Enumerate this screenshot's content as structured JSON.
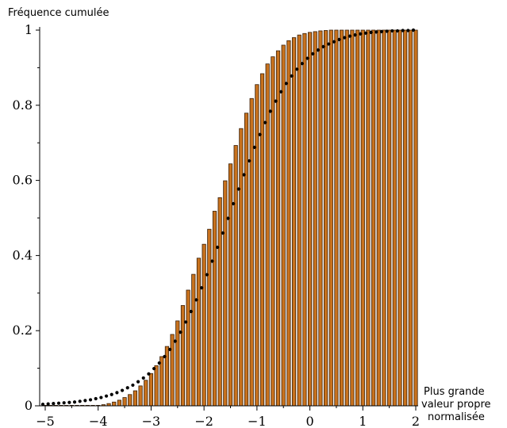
{
  "chart_data": {
    "type": "bar",
    "title": "",
    "ylabel": "Fréquence cumulée",
    "xlabel_lines": [
      "Plus grande",
      "valeur propre",
      "normalisée"
    ],
    "xlim": [
      -5,
      2
    ],
    "ylim": [
      0,
      1
    ],
    "x_ticks": [
      -5,
      -4,
      -3,
      -2,
      -1,
      0,
      1,
      2
    ],
    "x_tick_labels": [
      "−5",
      "−4",
      "−3",
      "−2",
      "−1",
      "0",
      "1",
      "2"
    ],
    "y_ticks": [
      0,
      0.2,
      0.4,
      0.6,
      0.8,
      1
    ],
    "y_tick_labels": [
      "0",
      "0.2",
      "0.4",
      "0.6",
      "0.8",
      "1"
    ],
    "grid": false,
    "colors": {
      "bar_fill": "#c8721e",
      "bar_stroke": "#3a1e05",
      "point": "#000000",
      "axis": "#000000"
    },
    "series": [
      {
        "type": "bar",
        "x": [
          -5.0,
          -4.9,
          -4.8,
          -4.7,
          -4.6,
          -4.5,
          -4.4,
          -4.3,
          -4.2,
          -4.1,
          -4.0,
          -3.9,
          -3.8,
          -3.7,
          -3.6,
          -3.5,
          -3.4,
          -3.3,
          -3.2,
          -3.1,
          -3.0,
          -2.9,
          -2.8,
          -2.7,
          -2.6,
          -2.5,
          -2.4,
          -2.3,
          -2.2,
          -2.1,
          -2.0,
          -1.9,
          -1.8,
          -1.7,
          -1.6,
          -1.5,
          -1.4,
          -1.3,
          -1.2,
          -1.1,
          -1.0,
          -0.9,
          -0.8,
          -0.7,
          -0.6,
          -0.5,
          -0.4,
          -0.3,
          -0.2,
          -0.1,
          0.0,
          0.1,
          0.2,
          0.3,
          0.4,
          0.5,
          0.6,
          0.7,
          0.8,
          0.9,
          1.0,
          1.1,
          1.2,
          1.3,
          1.4,
          1.5,
          1.6,
          1.7,
          1.8,
          1.9,
          2.0
        ],
        "values": [
          0.0,
          0.0,
          0.0,
          0.0,
          0.0,
          0.0,
          0.0,
          0.0,
          0.0,
          0.0,
          0.001,
          0.003,
          0.006,
          0.01,
          0.015,
          0.022,
          0.03,
          0.04,
          0.053,
          0.068,
          0.086,
          0.107,
          0.131,
          0.158,
          0.19,
          0.226,
          0.267,
          0.308,
          0.35,
          0.393,
          0.43,
          0.47,
          0.518,
          0.554,
          0.599,
          0.644,
          0.693,
          0.738,
          0.779,
          0.818,
          0.855,
          0.884,
          0.91,
          0.929,
          0.945,
          0.96,
          0.972,
          0.98,
          0.987,
          0.991,
          0.994,
          0.996,
          0.998,
          0.999,
          1.0,
          1.0,
          1.0,
          1.0,
          1.0,
          1.0,
          1.0,
          1.0,
          1.0,
          1.0,
          1.0,
          1.0,
          1.0,
          1.0,
          1.0,
          1.0,
          1.0
        ]
      },
      {
        "type": "scatter",
        "x": [
          -5.0,
          -4.9,
          -4.8,
          -4.7,
          -4.6,
          -4.5,
          -4.4,
          -4.3,
          -4.2,
          -4.1,
          -4.0,
          -3.9,
          -3.8,
          -3.7,
          -3.6,
          -3.5,
          -3.4,
          -3.3,
          -3.2,
          -3.1,
          -3.0,
          -2.9,
          -2.8,
          -2.7,
          -2.6,
          -2.5,
          -2.4,
          -2.3,
          -2.2,
          -2.1,
          -2.0,
          -1.9,
          -1.8,
          -1.7,
          -1.6,
          -1.5,
          -1.4,
          -1.3,
          -1.2,
          -1.1,
          -1.0,
          -0.9,
          -0.8,
          -0.7,
          -0.6,
          -0.5,
          -0.4,
          -0.3,
          -0.2,
          -0.1,
          0.0,
          0.1,
          0.2,
          0.3,
          0.4,
          0.5,
          0.6,
          0.7,
          0.8,
          0.9,
          1.0,
          1.1,
          1.2,
          1.3,
          1.4,
          1.5,
          1.6,
          1.7,
          1.8,
          1.9,
          2.0
        ],
        "values": [
          0.004,
          0.005,
          0.006,
          0.007,
          0.008,
          0.009,
          0.01,
          0.012,
          0.014,
          0.016,
          0.019,
          0.022,
          0.026,
          0.03,
          0.035,
          0.041,
          0.048,
          0.055,
          0.064,
          0.074,
          0.085,
          0.099,
          0.114,
          0.131,
          0.15,
          0.172,
          0.196,
          0.223,
          0.251,
          0.282,
          0.314,
          0.349,
          0.385,
          0.422,
          0.46,
          0.499,
          0.538,
          0.577,
          0.615,
          0.652,
          0.688,
          0.722,
          0.754,
          0.784,
          0.811,
          0.836,
          0.858,
          0.878,
          0.896,
          0.911,
          0.925,
          0.937,
          0.947,
          0.956,
          0.963,
          0.969,
          0.975,
          0.98,
          0.984,
          0.987,
          0.99,
          0.992,
          0.994,
          0.995,
          0.996,
          0.997,
          0.998,
          0.998,
          0.999,
          0.999,
          1.0
        ]
      }
    ]
  }
}
